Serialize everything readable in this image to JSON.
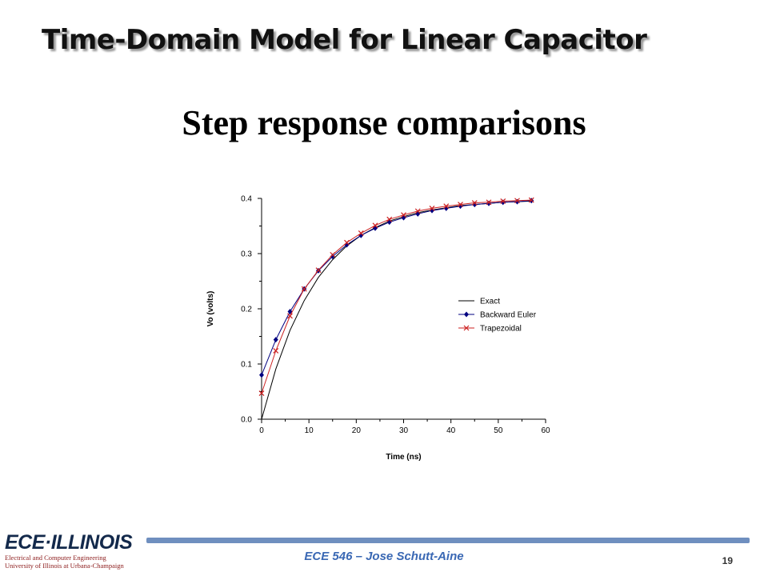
{
  "slide": {
    "title": "Time-Domain Model for Linear Capacitor",
    "subtitle": "Step response comparisons"
  },
  "footer": {
    "text": "ECE 546 – Jose Schutt-Aine",
    "page_number": "19",
    "logo": {
      "main": "ECE·ILLINOIS",
      "line1": "Electrical and Computer Engineering",
      "line2": "University of Illinois at Urbana-Champaign"
    },
    "bar_color": "#6f8fbf",
    "text_color": "#3a68b4"
  },
  "chart_data": {
    "type": "line",
    "title": "",
    "xlabel": "Time (ns)",
    "ylabel": "Vo (volts)",
    "xlim": [
      0,
      60
    ],
    "ylim": [
      0.0,
      0.4
    ],
    "xticks": [
      "0",
      "10",
      "20",
      "30",
      "40",
      "50",
      "60"
    ],
    "yticks": [
      "0.0",
      "0.1",
      "0.2",
      "0.3",
      "0.4"
    ],
    "grid": false,
    "legend_position": "right",
    "series": [
      {
        "name": "Exact",
        "marker": "none",
        "color": "#000000",
        "x": [
          0,
          3,
          6,
          9,
          12,
          15,
          18,
          21,
          24,
          27,
          30,
          33,
          36,
          39,
          42,
          45,
          48,
          51,
          54,
          57
        ],
        "y": [
          0.0,
          0.091,
          0.161,
          0.215,
          0.257,
          0.289,
          0.314,
          0.333,
          0.347,
          0.359,
          0.367,
          0.374,
          0.379,
          0.383,
          0.387,
          0.389,
          0.391,
          0.393,
          0.394,
          0.395
        ]
      },
      {
        "name": "Backward Euler",
        "marker": "diamond",
        "color": "#000080",
        "x": [
          0,
          3,
          6,
          9,
          12,
          15,
          18,
          21,
          24,
          27,
          30,
          33,
          36,
          39,
          42,
          45,
          48,
          51,
          54,
          57
        ],
        "y": [
          0.08,
          0.144,
          0.195,
          0.236,
          0.269,
          0.295,
          0.316,
          0.333,
          0.346,
          0.357,
          0.365,
          0.372,
          0.378,
          0.382,
          0.386,
          0.389,
          0.391,
          0.393,
          0.394,
          0.396
        ]
      },
      {
        "name": "Trapezoidal",
        "marker": "x",
        "color": "#cc2222",
        "x": [
          0,
          3,
          6,
          9,
          12,
          15,
          18,
          21,
          24,
          27,
          30,
          33,
          36,
          39,
          42,
          45,
          48,
          51,
          54,
          57
        ],
        "y": [
          0.047,
          0.124,
          0.187,
          0.236,
          0.27,
          0.298,
          0.32,
          0.337,
          0.351,
          0.362,
          0.37,
          0.377,
          0.382,
          0.386,
          0.389,
          0.392,
          0.393,
          0.395,
          0.396,
          0.397
        ]
      }
    ]
  }
}
